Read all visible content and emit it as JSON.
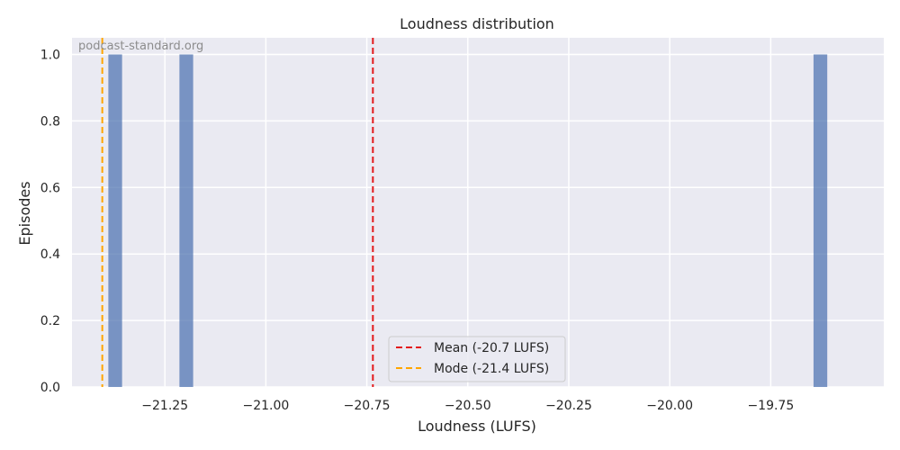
{
  "chart_data": {
    "type": "bar",
    "title": "Loudness distribution",
    "xlabel": "Loudness (LUFS)",
    "ylabel": "Episodes",
    "xlim": [
      -21.48,
      -19.47
    ],
    "ylim": [
      0,
      1.05
    ],
    "bin_width": 0.034,
    "bins": [
      {
        "x": -21.373,
        "count": 1
      },
      {
        "x": -21.197,
        "count": 1
      },
      {
        "x": -19.627,
        "count": 1
      }
    ],
    "x_ticks": [
      -21.25,
      -21.0,
      -20.75,
      -20.5,
      -20.25,
      -20.0,
      -19.75
    ],
    "x_tick_labels": [
      "−21.25",
      "−21.00",
      "−20.75",
      "−20.50",
      "−20.25",
      "−20.00",
      "−19.75"
    ],
    "y_ticks": [
      0.0,
      0.2,
      0.4,
      0.6,
      0.8,
      1.0
    ],
    "y_tick_labels": [
      "0.0",
      "0.2",
      "0.4",
      "0.6",
      "0.8",
      "1.0"
    ],
    "reference_lines": [
      {
        "label": "Mean (-20.7 LUFS)",
        "x": -20.735,
        "color": "#e31a1c"
      },
      {
        "label": "Mode (-21.4 LUFS)",
        "x": -21.405,
        "color": "#ffa500"
      }
    ],
    "bar_color": "#4c72b0",
    "background_color": "#eaeaf2",
    "grid": true,
    "legend_position": "lower-center",
    "watermark": "podcast-standard.org"
  }
}
